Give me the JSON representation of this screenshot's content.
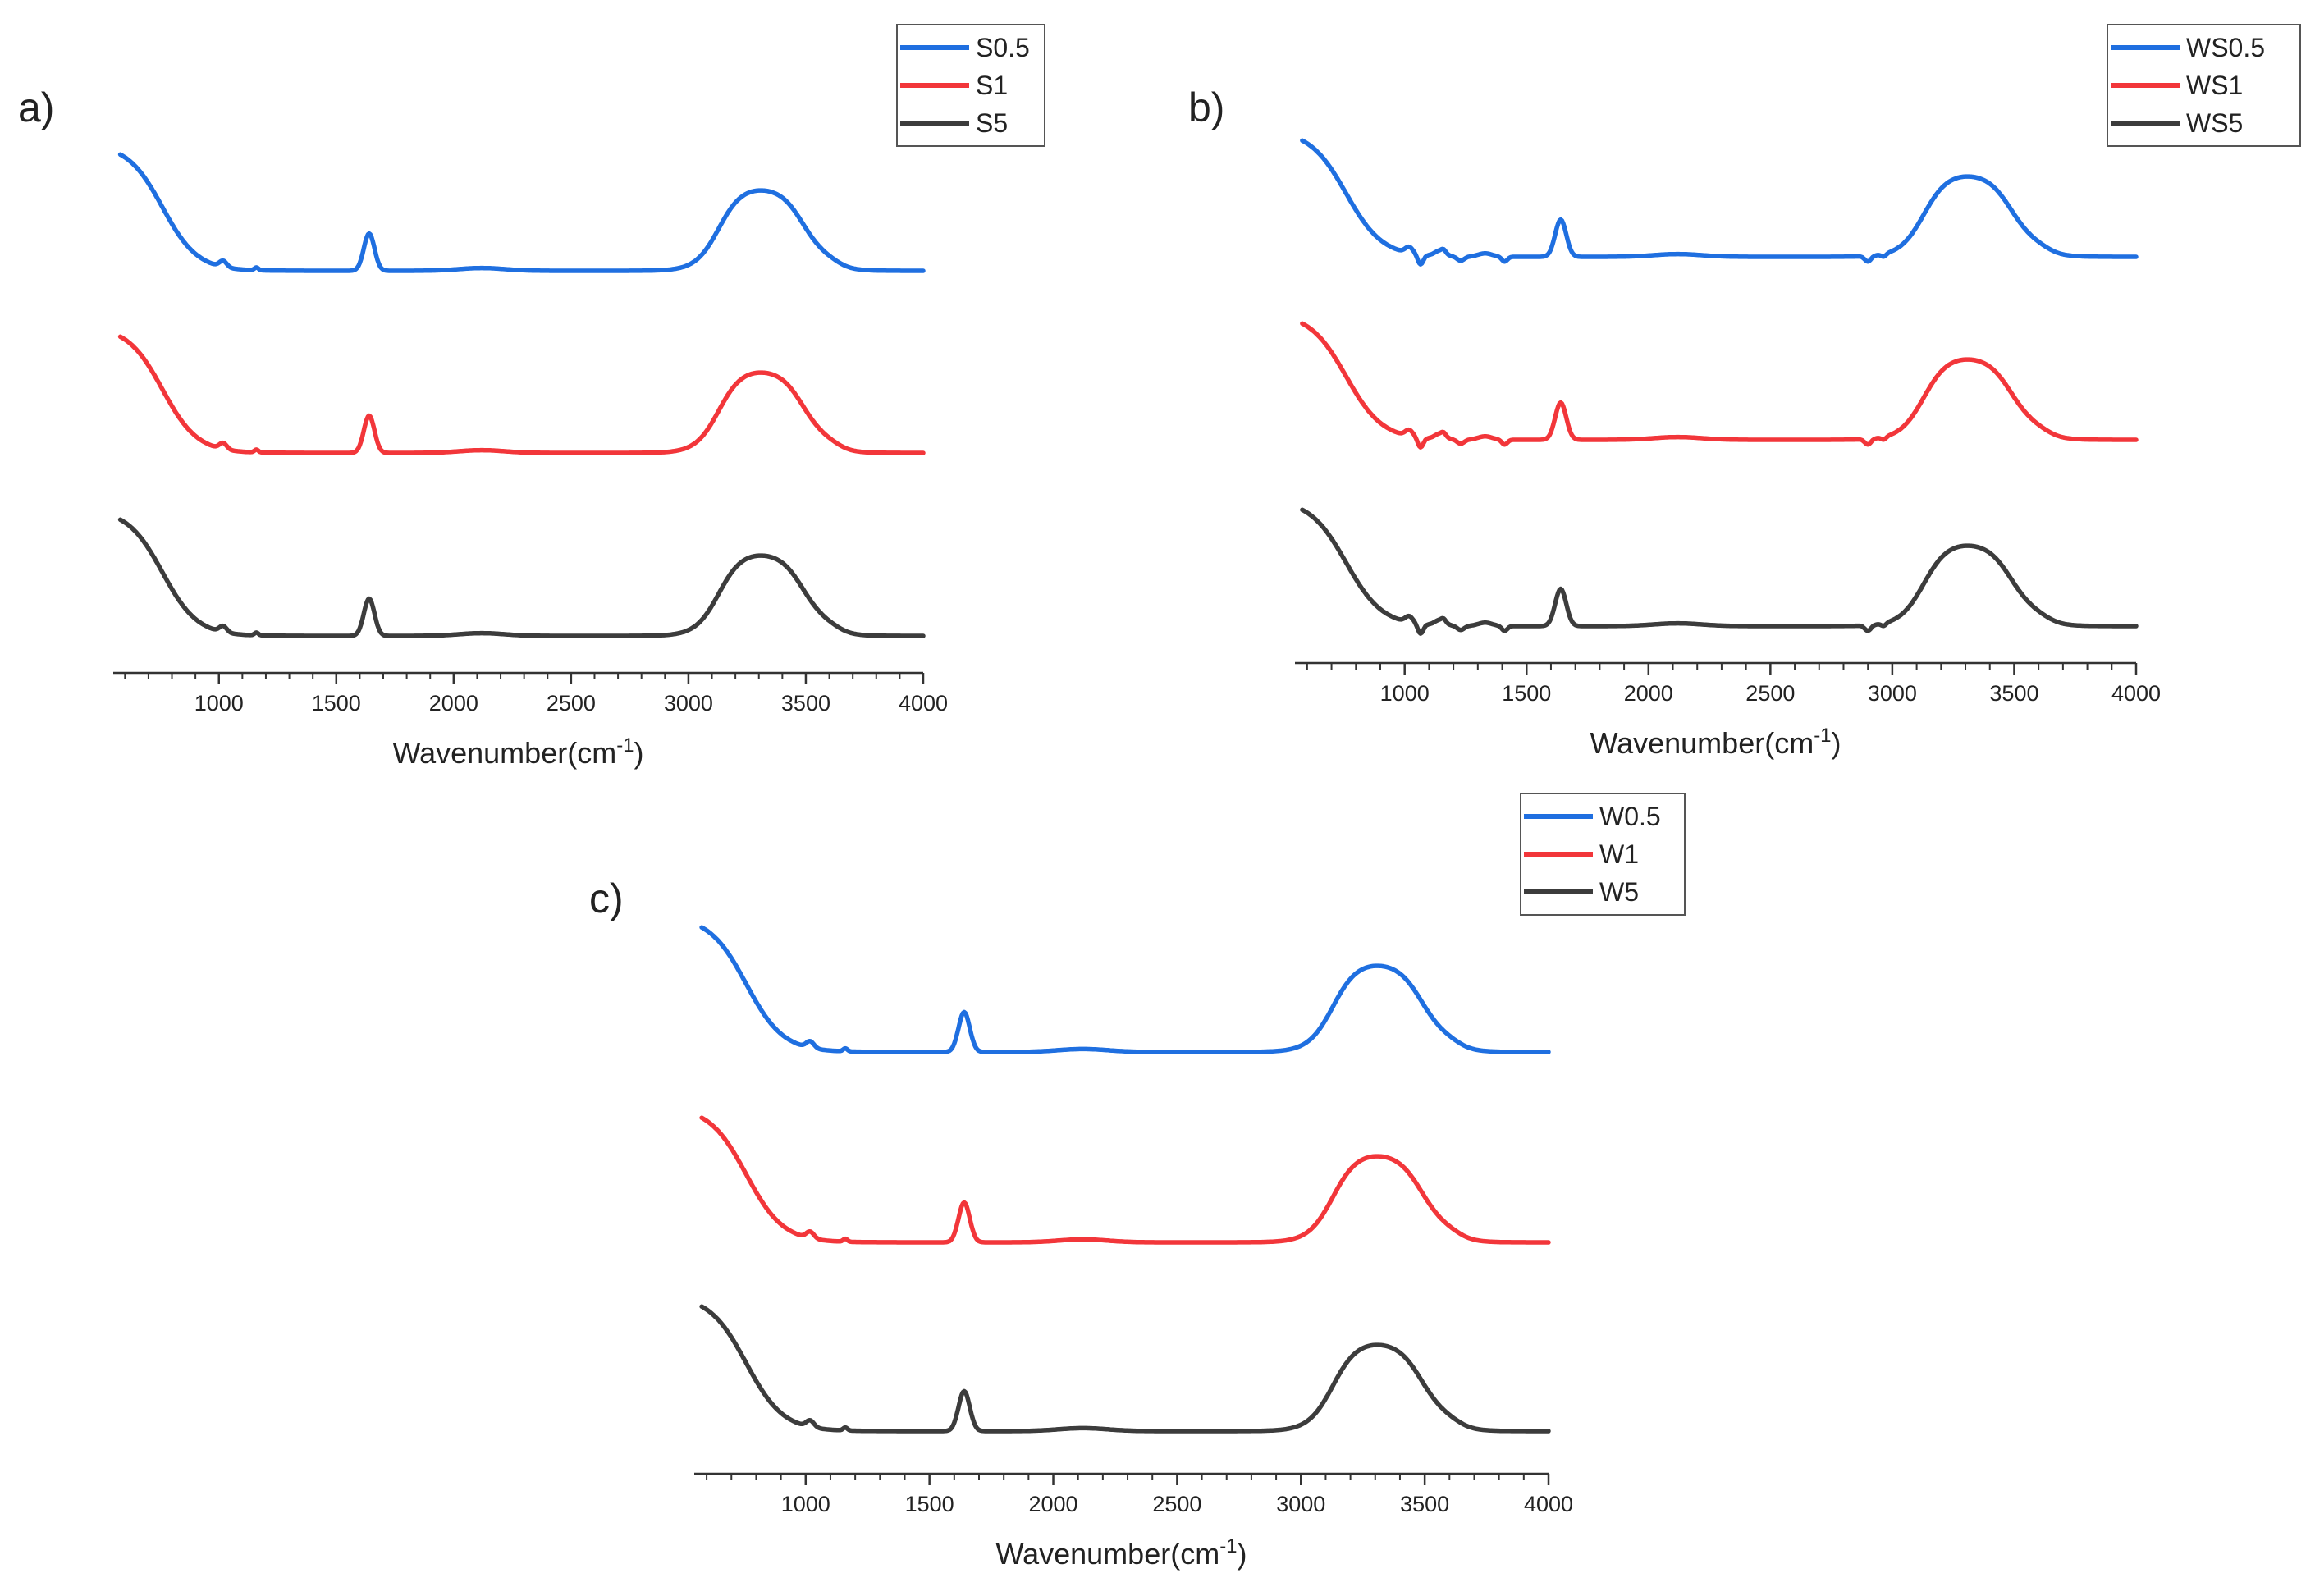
{
  "chart_data": [
    {
      "type": "line",
      "panel_label": "a)",
      "xlabel": "Wavenumber(cm",
      "xlabel_sup": "-1",
      "xlabel_close": ")",
      "xlim": [
        550,
        4000
      ],
      "xticks": [
        1000,
        1500,
        2000,
        2500,
        3000,
        3500,
        4000
      ],
      "yaxis_visible": false,
      "legend_position": "top-right",
      "series": [
        {
          "name": "S0.5",
          "color": "#1f6fe0"
        },
        {
          "name": "S1",
          "color": "#f2363a"
        },
        {
          "name": "S5",
          "color": "#3c3c3c"
        }
      ]
    },
    {
      "type": "line",
      "panel_label": "b)",
      "xlabel": "Wavenumber(cm",
      "xlabel_sup": "-1",
      "xlabel_close": ")",
      "xlim": [
        550,
        4000
      ],
      "xticks": [
        1000,
        1500,
        2000,
        2500,
        3000,
        3500,
        4000
      ],
      "yaxis_visible": false,
      "legend_position": "top-right",
      "series": [
        {
          "name": "WS0.5",
          "color": "#1f6fe0"
        },
        {
          "name": "WS1",
          "color": "#f2363a"
        },
        {
          "name": "WS5",
          "color": "#3c3c3c"
        }
      ]
    },
    {
      "type": "line",
      "panel_label": "c)",
      "xlabel": "Wavenumber(cm",
      "xlabel_sup": "-1",
      "xlabel_close": ")",
      "xlim": [
        550,
        4000
      ],
      "xticks": [
        1000,
        1500,
        2000,
        2500,
        3000,
        3500,
        4000
      ],
      "yaxis_visible": false,
      "legend_position": "top-right",
      "series": [
        {
          "name": "W0.5",
          "color": "#1f6fe0"
        },
        {
          "name": "W1",
          "color": "#f2363a"
        },
        {
          "name": "W5",
          "color": "#3c3c3c"
        }
      ]
    }
  ]
}
